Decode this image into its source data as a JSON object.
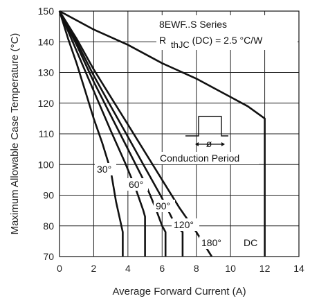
{
  "chart_data": {
    "type": "line",
    "title": "",
    "xlabel": "Average Forward Current (A)",
    "ylabel": "Maximum Allowable Case Temperature (°C)",
    "xlim": [
      0,
      14
    ],
    "ylim": [
      70,
      150
    ],
    "x_ticks": [
      0,
      2,
      4,
      6,
      8,
      10,
      12,
      14
    ],
    "y_ticks": [
      70,
      80,
      90,
      100,
      110,
      120,
      130,
      140,
      150
    ],
    "grid": true,
    "annotations": {
      "series_name": "8EWF..S Series",
      "rth_prefix": "R",
      "rth_sub": "thJC",
      "rth_suffix": "(DC) = 2.5 °C/W",
      "conduction_period": "Conduction Period",
      "period_symbol": "ø"
    },
    "series": [
      {
        "label": "30°",
        "x": [
          0,
          0.5,
          1.0,
          1.5,
          2.0,
          2.5,
          3.0,
          3.3,
          3.5,
          3.7,
          3.7
        ],
        "y": [
          150,
          141,
          133,
          124,
          115,
          107,
          98,
          88,
          83,
          78,
          70
        ]
      },
      {
        "label": "60°",
        "x": [
          0,
          1.0,
          2.0,
          3.0,
          3.8,
          4.4,
          4.9,
          5.0,
          5.0
        ],
        "y": [
          150,
          137,
          124,
          111,
          101,
          93,
          85,
          83,
          70
        ]
      },
      {
        "label": "90°",
        "x": [
          0,
          1.0,
          2.0,
          3.0,
          4.0,
          5.0,
          5.6,
          6.0,
          6.2,
          6.2
        ],
        "y": [
          150,
          139,
          127,
          116,
          105,
          94,
          86,
          80,
          78,
          70
        ]
      },
      {
        "label": "120°",
        "x": [
          0,
          1.0,
          2.0,
          3.0,
          4.0,
          5.0,
          6.0,
          6.8,
          7.2,
          7.2
        ],
        "y": [
          150,
          140,
          129,
          119,
          109,
          99,
          89,
          80,
          78,
          70
        ]
      },
      {
        "label": "180°",
        "x": [
          0,
          1.0,
          2.0,
          3.0,
          4.0,
          5.0,
          6.0,
          7.0,
          8.0,
          8.9,
          8.9
        ],
        "y": [
          150,
          141,
          131,
          122,
          113,
          104,
          95,
          86,
          78,
          70,
          70
        ]
      },
      {
        "label": "DC",
        "x": [
          0,
          2.0,
          4.0,
          6.0,
          8.0,
          10.0,
          11.0,
          12.0,
          12.0
        ],
        "y": [
          150,
          144,
          139,
          133,
          128,
          122,
          119,
          115,
          70
        ]
      }
    ]
  }
}
